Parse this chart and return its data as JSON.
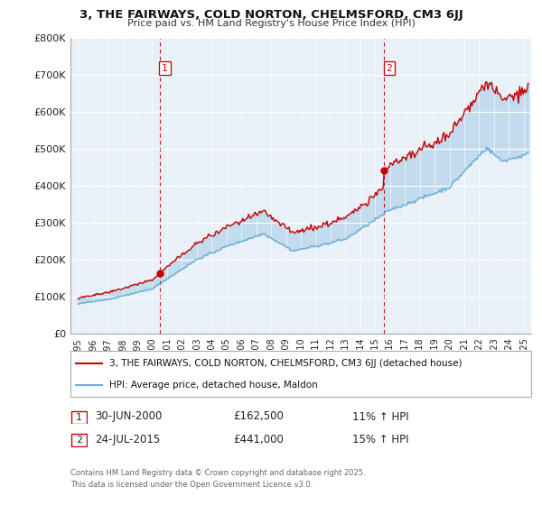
{
  "title": "3, THE FAIRWAYS, COLD NORTON, CHELMSFORD, CM3 6JJ",
  "subtitle": "Price paid vs. HM Land Registry's House Price Index (HPI)",
  "legend_line1": "3, THE FAIRWAYS, COLD NORTON, CHELMSFORD, CM3 6JJ (detached house)",
  "legend_line2": "HPI: Average price, detached house, Maldon",
  "footer1": "Contains HM Land Registry data © Crown copyright and database right 2025.",
  "footer2": "This data is licensed under the Open Government Licence v3.0.",
  "annotation1_label": "1",
  "annotation1_date": "30-JUN-2000",
  "annotation1_price": "£162,500",
  "annotation1_hpi": "11% ↑ HPI",
  "annotation2_label": "2",
  "annotation2_date": "24-JUL-2015",
  "annotation2_price": "£441,000",
  "annotation2_hpi": "15% ↑ HPI",
  "vline1_x": 2000.5,
  "vline2_x": 2015.6,
  "point1_x": 2000.5,
  "point1_y": 162500,
  "point2_x": 2015.6,
  "point2_y": 441000,
  "hpi_color": "#6baed6",
  "price_color": "#cc0000",
  "vline_color": "#cc0000",
  "fill_color": "#ddeeff",
  "ylim": [
    0,
    800000
  ],
  "xlim_start": 1994.5,
  "xlim_end": 2025.5,
  "background_color": "#ffffff",
  "grid_color": "#cccccc",
  "chart_bg": "#e8f0f8"
}
